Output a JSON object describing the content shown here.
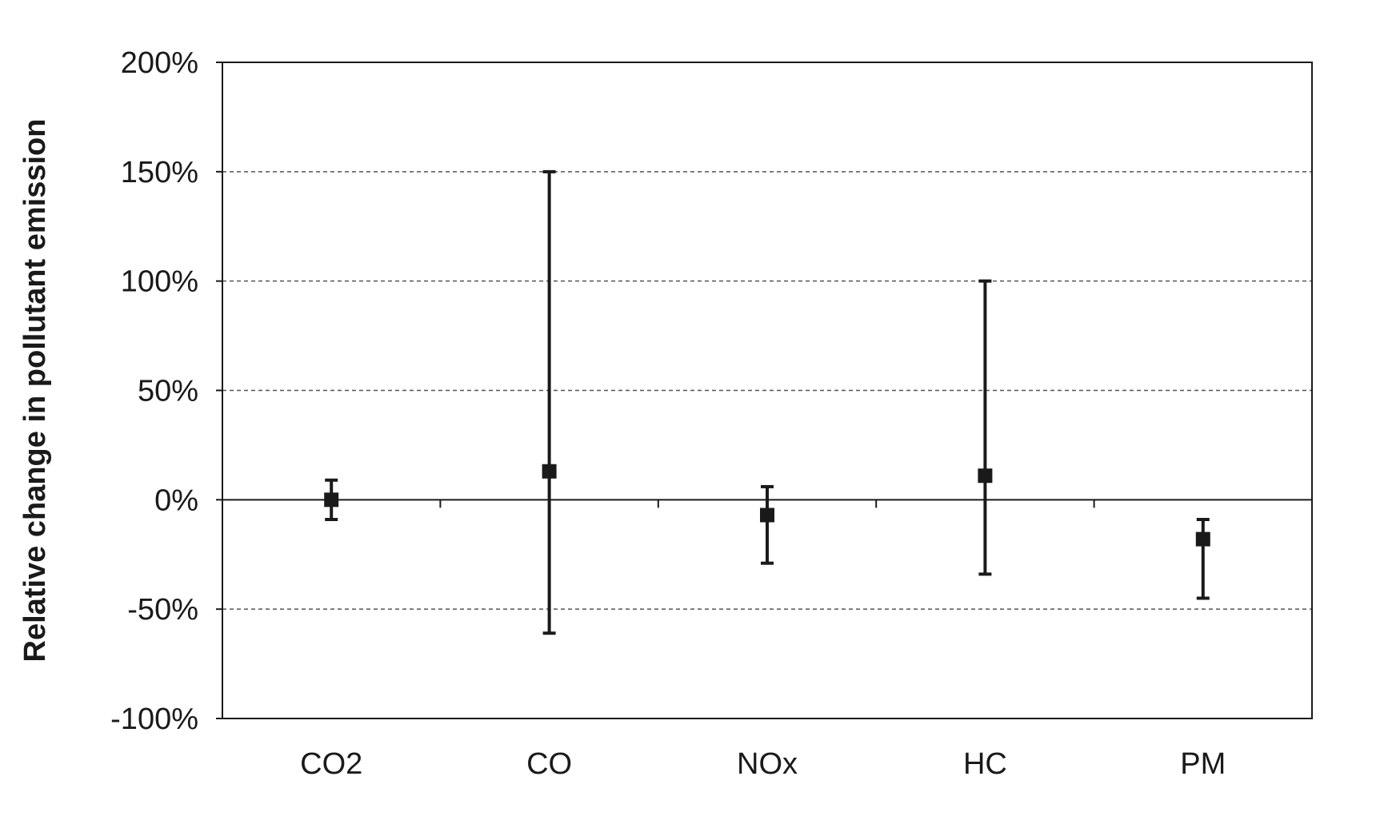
{
  "chart_data": {
    "type": "scatter",
    "categories": [
      "CO2",
      "CO",
      "NOx",
      "HC",
      "PM"
    ],
    "series": [
      {
        "values": [
          0,
          13,
          -7,
          11,
          -18
        ],
        "error_low": [
          -9,
          -61,
          -29,
          -34,
          -45
        ],
        "error_high": [
          9,
          150,
          6,
          100,
          -9
        ]
      }
    ],
    "ylabel": "Relative change in pollutant emission",
    "xlabel": "",
    "ylim": [
      -100,
      200
    ],
    "yticks": [
      -100,
      -50,
      0,
      50,
      100,
      150,
      200
    ],
    "ytick_labels": [
      "-100%",
      "-50%",
      "0%",
      "50%",
      "100%",
      "150%",
      "200%"
    ],
    "grid": "horizontal dashed",
    "legend": "none",
    "colors": {
      "marker": "#1a1a1a",
      "axis": "#1a1a1a",
      "grid": "#555555"
    }
  }
}
